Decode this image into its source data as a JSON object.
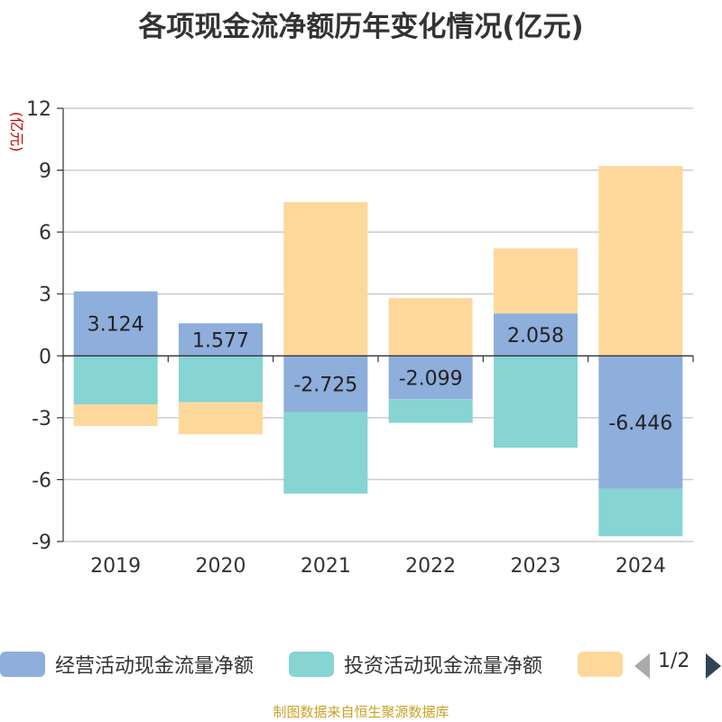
{
  "chart_data": {
    "type": "bar",
    "stacked": true,
    "title": "各项现金流净额历年变化情况(亿元)",
    "ylabel": "(亿元)",
    "xlabel": "",
    "categories": [
      "2019",
      "2020",
      "2021",
      "2022",
      "2023",
      "2024"
    ],
    "ylim": [
      -9,
      12
    ],
    "yticks": [
      12,
      9,
      6,
      3,
      0,
      -3,
      -6,
      -9
    ],
    "grid": true,
    "series": [
      {
        "name": "经营活动现金流量净额",
        "color": "#8eaedb",
        "values": [
          3.124,
          1.577,
          -2.725,
          -2.099,
          2.058,
          -6.446
        ],
        "labels_shown": true
      },
      {
        "name": "投资活动现金流量净额",
        "color": "#86d4d4",
        "values": [
          -2.35,
          -2.25,
          -3.95,
          -1.15,
          -4.45,
          -2.3
        ],
        "labels_shown": false
      },
      {
        "name": "",
        "color": "#fdd89a",
        "values": [
          -1.05,
          -1.55,
          7.45,
          2.8,
          3.15,
          9.2
        ],
        "labels_shown": false
      }
    ],
    "legend_position": "bottom"
  },
  "legend": {
    "page_indicator": "1/2"
  },
  "source": "制图数据来自恒生聚源数据库"
}
